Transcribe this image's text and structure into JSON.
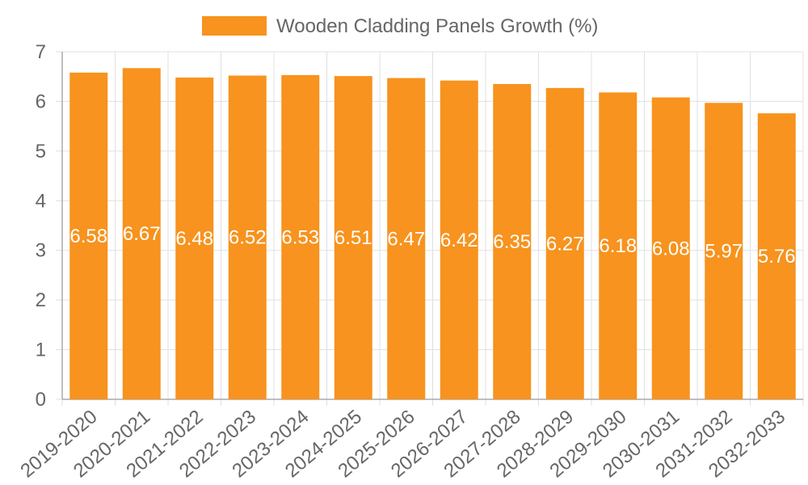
{
  "chart_data": {
    "type": "bar",
    "categories": [
      "2019-2020",
      "2020-2021",
      "2021-2022",
      "2022-2023",
      "2023-2024",
      "2024-2025",
      "2025-2026",
      "2026-2027",
      "2027-2028",
      "2028-2029",
      "2029-2030",
      "2030-2031",
      "2031-2032",
      "2032-2033"
    ],
    "series": [
      {
        "name": "Wooden Cladding Panels Growth (%)",
        "values": [
          6.58,
          6.67,
          6.48,
          6.52,
          6.53,
          6.51,
          6.47,
          6.42,
          6.35,
          6.27,
          6.18,
          6.08,
          5.97,
          5.76
        ],
        "color": "#f7931e"
      }
    ],
    "title": "",
    "xlabel": "",
    "ylabel": "",
    "ylim": [
      0,
      7
    ],
    "yticks": [
      "0",
      "1",
      "2",
      "3",
      "4",
      "5",
      "6",
      "7"
    ],
    "grid": true,
    "legend_position": "top-center",
    "data_labels": [
      "6.58",
      "6.67",
      "6.48",
      "6.52",
      "6.53",
      "6.51",
      "6.47",
      "6.42",
      "6.35",
      "6.27",
      "6.18",
      "6.08",
      "5.97",
      "5.76"
    ],
    "colors": {
      "bar": "#f7931e",
      "grid": "#e0e0e0",
      "axis": "#aaaaaa",
      "text": "#666666",
      "label": "#ffffff"
    }
  }
}
